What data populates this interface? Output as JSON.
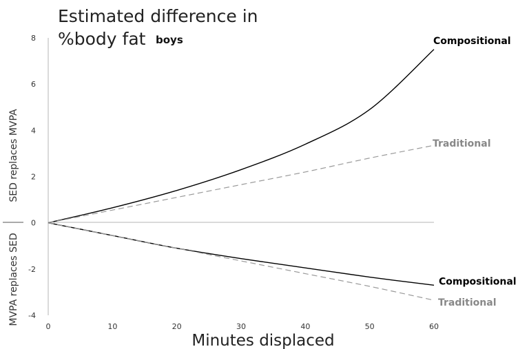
{
  "chart_data": {
    "type": "line",
    "title": "Estimated difference in",
    "title_line2": "%body fat",
    "title_bold": "boys",
    "xlabel": "Minutes displaced",
    "ylabel_upper": "SED replaces MVPA",
    "ylabel_lower": "MVPA replaces SED",
    "xlim": [
      0,
      60
    ],
    "ylim": [
      -4,
      8
    ],
    "x_ticks": [
      "0",
      "10",
      "20",
      "30",
      "40",
      "50",
      "60"
    ],
    "y_ticks": [
      "-4",
      "-2",
      "0",
      "2",
      "4",
      "6",
      "8"
    ],
    "grid": false,
    "x": [
      0,
      10,
      20,
      30,
      40,
      50,
      60
    ],
    "series": [
      {
        "name": "Compositional",
        "values": [
          0,
          0.65,
          1.4,
          2.3,
          3.4,
          4.9,
          7.5
        ],
        "color": "#000000",
        "dash": false
      },
      {
        "name": "Traditional",
        "values": [
          0,
          0.55,
          1.1,
          1.65,
          2.2,
          2.8,
          3.35
        ],
        "color": "#999999",
        "dash": true
      },
      {
        "name": "Compositional",
        "values": [
          0,
          -0.55,
          -1.1,
          -1.55,
          -1.95,
          -2.35,
          -2.7
        ],
        "color": "#000000",
        "dash": false
      },
      {
        "name": "Traditional",
        "values": [
          0,
          -0.55,
          -1.1,
          -1.65,
          -2.2,
          -2.75,
          -3.35
        ],
        "color": "#999999",
        "dash": true
      }
    ]
  }
}
